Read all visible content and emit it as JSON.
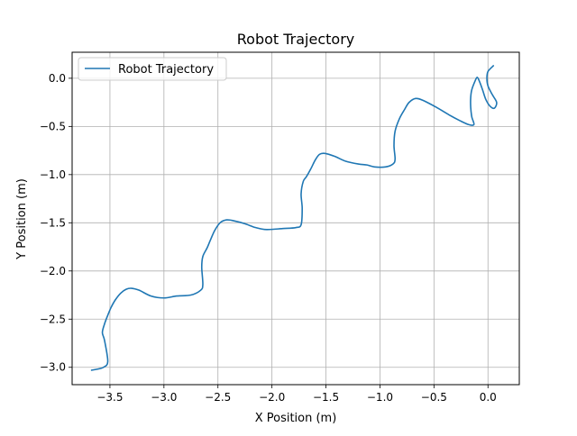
{
  "chart_data": {
    "type": "line",
    "title": "Robot Trajectory",
    "xlabel": "X Position (m)",
    "ylabel": "Y Position (m)",
    "xlim": [
      -3.85,
      0.29
    ],
    "ylim": [
      -3.18,
      0.27
    ],
    "xticks": [
      -3.5,
      -3.0,
      -2.5,
      -2.0,
      -1.5,
      -1.0,
      -0.5,
      0.0
    ],
    "yticks": [
      -3.0,
      -2.5,
      -2.0,
      -1.5,
      -1.0,
      -0.5,
      0.0
    ],
    "xtick_labels": [
      "−3.5",
      "−3.0",
      "−2.5",
      "−2.0",
      "−1.5",
      "−1.0",
      "−0.5",
      "0.0"
    ],
    "ytick_labels": [
      "−3.0",
      "−2.5",
      "−2.0",
      "−1.5",
      "−1.0",
      "−0.5",
      "0.0"
    ],
    "grid": true,
    "legend_position": "upper-left",
    "series": [
      {
        "name": "Robot Trajectory",
        "color": "#1f77b4",
        "x": [
          0.05,
          0.0,
          -0.01,
          0.0,
          0.04,
          0.08,
          0.06,
          0.02,
          -0.02,
          -0.05,
          -0.08,
          -0.1,
          -0.12,
          -0.15,
          -0.16,
          -0.16,
          -0.15,
          -0.13,
          -0.18,
          -0.26,
          -0.36,
          -0.48,
          -0.6,
          -0.67,
          -0.73,
          -0.77,
          -0.82,
          -0.86,
          -0.87,
          -0.86,
          -0.88,
          -0.95,
          -1.05,
          -1.12,
          -1.2,
          -1.32,
          -1.42,
          -1.51,
          -1.56,
          -1.6,
          -1.64,
          -1.68,
          -1.71,
          -1.73,
          -1.72,
          -1.73,
          -1.78,
          -1.9,
          -2.05,
          -2.15,
          -2.25,
          -2.35,
          -2.42,
          -2.48,
          -2.53,
          -2.57,
          -2.6,
          -2.64,
          -2.65,
          -2.64,
          -2.66,
          -2.75,
          -2.88,
          -3.0,
          -3.12,
          -3.23,
          -3.3,
          -3.35,
          -3.4,
          -3.45,
          -3.49,
          -3.52,
          -3.55,
          -3.57,
          -3.55,
          -3.52,
          -3.56,
          -3.62,
          -3.67
        ],
        "y": [
          0.13,
          0.07,
          0.0,
          -0.08,
          -0.17,
          -0.25,
          -0.31,
          -0.29,
          -0.22,
          -0.12,
          -0.03,
          0.01,
          -0.03,
          -0.12,
          -0.2,
          -0.3,
          -0.4,
          -0.48,
          -0.48,
          -0.44,
          -0.38,
          -0.3,
          -0.23,
          -0.21,
          -0.25,
          -0.32,
          -0.42,
          -0.55,
          -0.7,
          -0.84,
          -0.89,
          -0.92,
          -0.92,
          -0.9,
          -0.89,
          -0.86,
          -0.81,
          -0.78,
          -0.79,
          -0.85,
          -0.94,
          -1.02,
          -1.07,
          -1.2,
          -1.35,
          -1.52,
          -1.55,
          -1.56,
          -1.57,
          -1.55,
          -1.51,
          -1.48,
          -1.47,
          -1.5,
          -1.58,
          -1.68,
          -1.76,
          -1.85,
          -1.96,
          -2.14,
          -2.2,
          -2.25,
          -2.26,
          -2.28,
          -2.26,
          -2.2,
          -2.18,
          -2.19,
          -2.23,
          -2.3,
          -2.38,
          -2.46,
          -2.55,
          -2.64,
          -2.72,
          -2.94,
          -3.0,
          -3.02,
          -3.03
        ]
      }
    ]
  }
}
